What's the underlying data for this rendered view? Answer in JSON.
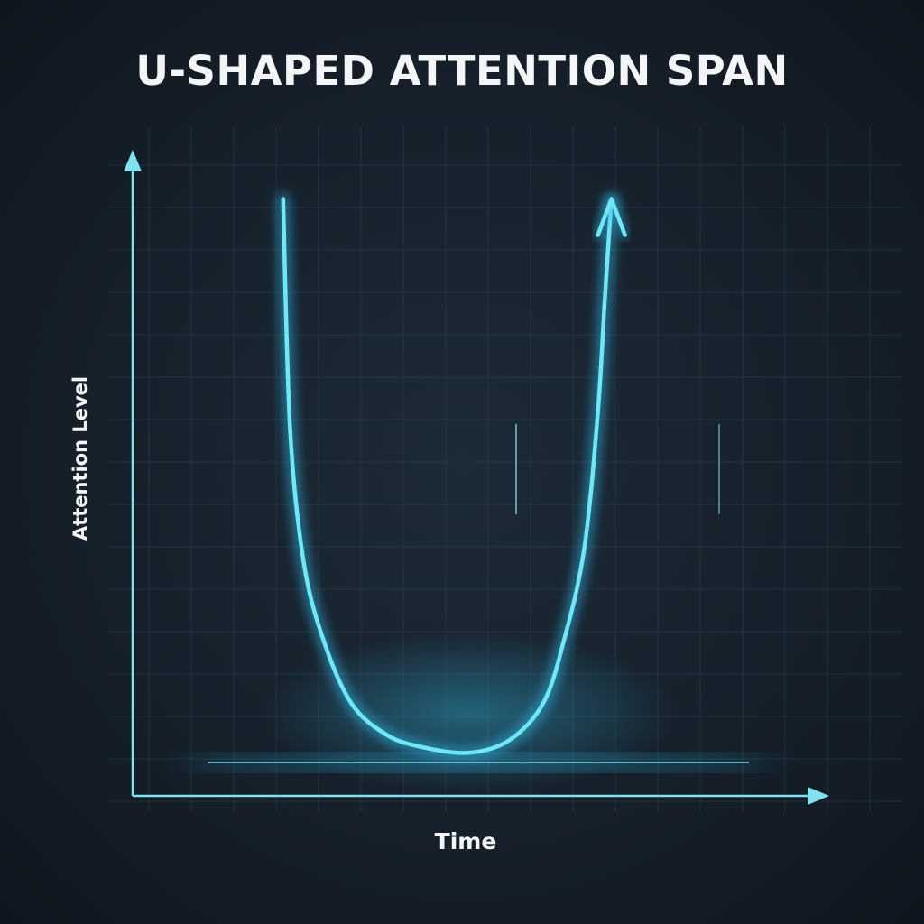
{
  "chart": {
    "title": "U-SHAPED ATTENTION SPAN",
    "xlabel": "Time",
    "ylabel": "Attention Level"
  },
  "colors": {
    "background": "#16202b",
    "grid": "#2b4a58",
    "axis": "#7fe3ef",
    "curve": "#6ee8f6",
    "glow": "#2fb8e8",
    "text": "#f3f5f7"
  },
  "chart_data": {
    "type": "line",
    "title": "U-SHAPED ATTENTION SPAN",
    "xlabel": "Time",
    "ylabel": "Attention Level",
    "xlim": [
      0,
      1
    ],
    "ylim": [
      0,
      1
    ],
    "grid": true,
    "legend": "none",
    "series": [
      {
        "x": [
          0.22,
          0.23,
          0.25,
          0.28,
          0.32,
          0.37,
          0.42,
          0.49,
          0.55,
          0.6,
          0.63,
          0.66,
          0.68,
          0.69,
          0.7
        ],
        "y": [
          0.97,
          0.6,
          0.38,
          0.25,
          0.15,
          0.1,
          0.08,
          0.07,
          0.09,
          0.15,
          0.25,
          0.4,
          0.62,
          0.8,
          0.97
        ],
        "end_arrow": true
      }
    ]
  }
}
